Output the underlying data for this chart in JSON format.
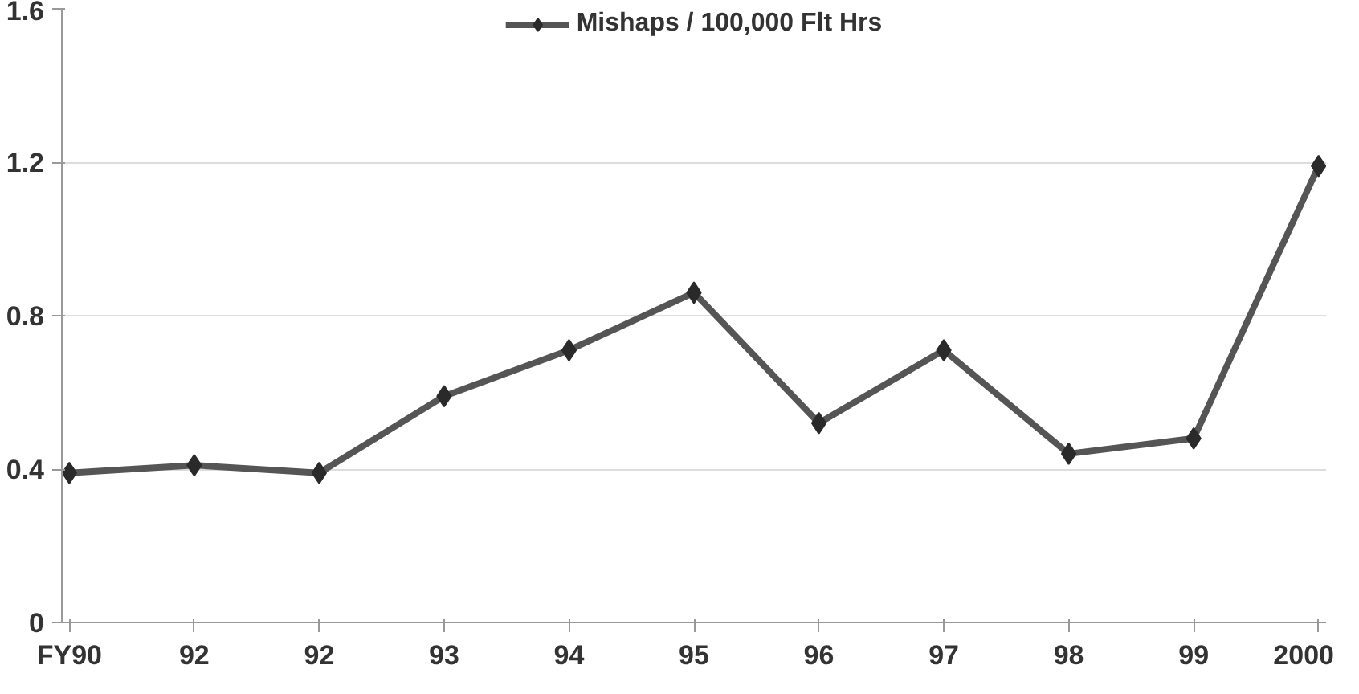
{
  "chart_data": {
    "type": "line",
    "categories": [
      "FY90",
      "92",
      "92",
      "93",
      "94",
      "95",
      "96",
      "97",
      "98",
      "99",
      "2000"
    ],
    "series": [
      {
        "name": "Mishaps / 100,000 Flt Hrs",
        "color": "#555555",
        "values": [
          0.39,
          0.41,
          0.39,
          0.59,
          0.71,
          0.86,
          0.52,
          0.71,
          0.44,
          0.48,
          1.19
        ]
      }
    ],
    "ylim": [
      0,
      1.6
    ],
    "yticks": [
      0,
      0.4,
      0.8,
      1.2,
      1.6
    ],
    "grid": "y",
    "legend": "top",
    "marker": "diamond",
    "line_style": "solid"
  }
}
